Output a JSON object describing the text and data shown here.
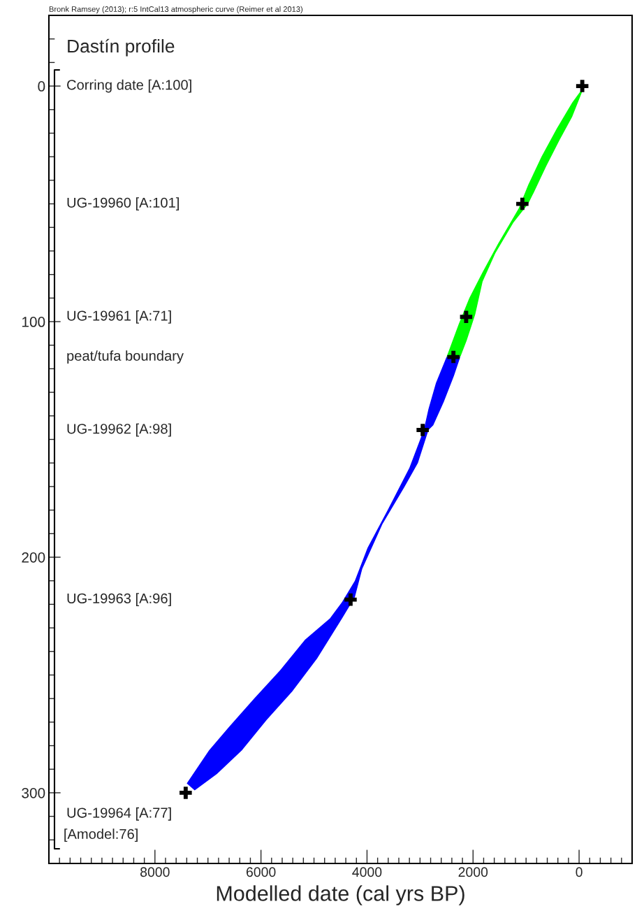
{
  "chart_data": {
    "type": "area",
    "title": "Dastín profile",
    "xlabel": "Modelled date (cal yrs BP)",
    "xlim": [
      10000,
      -1000
    ],
    "ylim": [
      330,
      -30
    ],
    "xticks": [
      {
        "value": 9800,
        "label": null
      },
      {
        "value": 9600,
        "label": null
      },
      {
        "value": 9400,
        "label": null
      },
      {
        "value": 9200,
        "label": null
      },
      {
        "value": 9000,
        "label": null
      },
      {
        "value": 8800,
        "label": null
      },
      {
        "value": 8600,
        "label": null
      },
      {
        "value": 8400,
        "label": null
      },
      {
        "value": 8200,
        "label": null
      },
      8000,
      {
        "value": 7800,
        "label": null
      },
      {
        "value": 7600,
        "label": null
      },
      {
        "value": 7400,
        "label": null
      },
      {
        "value": 7200,
        "label": null
      },
      {
        "value": 7000,
        "label": null
      },
      {
        "value": 6800,
        "label": null
      },
      {
        "value": 6600,
        "label": null
      },
      {
        "value": 6400,
        "label": null
      },
      {
        "value": 6200,
        "label": null
      },
      6000,
      {
        "value": 5800,
        "label": null
      },
      {
        "value": 5600,
        "label": null
      },
      {
        "value": 5400,
        "label": null
      },
      {
        "value": 5200,
        "label": null
      },
      {
        "value": 5000,
        "label": null
      },
      {
        "value": 4800,
        "label": null
      },
      {
        "value": 4600,
        "label": null
      },
      {
        "value": 4400,
        "label": null
      },
      {
        "value": 4200,
        "label": null
      },
      4000,
      {
        "value": 3800,
        "label": null
      },
      {
        "value": 3600,
        "label": null
      },
      {
        "value": 3400,
        "label": null
      },
      {
        "value": 3200,
        "label": null
      },
      {
        "value": 3000,
        "label": null
      },
      {
        "value": 2800,
        "label": null
      },
      {
        "value": 2600,
        "label": null
      },
      {
        "value": 2400,
        "label": null
      },
      {
        "value": 2200,
        "label": null
      },
      2000,
      {
        "value": 1800,
        "label": null
      },
      {
        "value": 1600,
        "label": null
      },
      {
        "value": 1400,
        "label": null
      },
      {
        "value": 1200,
        "label": null
      },
      {
        "value": 1000,
        "label": null
      },
      {
        "value": 800,
        "label": null
      },
      {
        "value": 600,
        "label": null
      },
      {
        "value": 400,
        "label": null
      },
      {
        "value": 200,
        "label": null
      },
      0,
      {
        "value": -200,
        "label": null
      },
      {
        "value": -400,
        "label": null
      },
      {
        "value": -600,
        "label": null
      },
      {
        "value": -800,
        "label": null
      }
    ],
    "yticks": [
      {
        "value": -20,
        "label": null
      },
      {
        "value": -10,
        "label": null
      },
      0,
      {
        "value": 10,
        "label": null
      },
      {
        "value": 20,
        "label": null
      },
      {
        "value": 30,
        "label": null
      },
      {
        "value": 40,
        "label": null
      },
      {
        "value": 50,
        "label": null
      },
      {
        "value": 60,
        "label": null
      },
      {
        "value": 70,
        "label": null
      },
      {
        "value": 80,
        "label": null
      },
      {
        "value": 90,
        "label": null
      },
      100,
      {
        "value": 110,
        "label": null
      },
      {
        "value": 120,
        "label": null
      },
      {
        "value": 130,
        "label": null
      },
      {
        "value": 140,
        "label": null
      },
      {
        "value": 150,
        "label": null
      },
      {
        "value": 160,
        "label": null
      },
      {
        "value": 170,
        "label": null
      },
      {
        "value": 180,
        "label": null
      },
      {
        "value": 190,
        "label": null
      },
      200,
      {
        "value": 210,
        "label": null
      },
      {
        "value": 220,
        "label": null
      },
      {
        "value": 230,
        "label": null
      },
      {
        "value": 240,
        "label": null
      },
      {
        "value": 250,
        "label": null
      },
      {
        "value": 260,
        "label": null
      },
      {
        "value": 270,
        "label": null
      },
      {
        "value": 280,
        "label": null
      },
      {
        "value": 290,
        "label": null
      },
      300,
      {
        "value": 310,
        "label": null
      },
      {
        "value": 320,
        "label": null
      }
    ],
    "grid": false,
    "legend": false,
    "series": [
      {
        "color": "#00ff00",
        "x": [
          -65,
          130,
          370,
          620,
          850,
          960,
          1240,
          1580,
          1820,
          1960,
          2120,
          2240,
          2500,
          2270,
          2070,
          1820,
          1530,
          1140,
          960,
          710,
          420,
          130,
          -65
        ],
        "values": [
          2,
          13,
          23,
          34,
          45,
          50,
          58,
          71,
          83,
          97,
          108,
          115,
          115,
          101,
          90,
          79,
          67,
          52,
          42,
          30,
          18,
          7,
          1
        ]
      },
      {
        "color": "#0000ff",
        "x": [
          2240,
          2360,
          2550,
          2750,
          2840,
          3040,
          3290,
          3710,
          4090,
          4230,
          4470,
          4940,
          5410,
          5890,
          6360,
          6830,
          7250,
          7400,
          6980,
          6600,
          6130,
          5640,
          5170,
          4700,
          4470,
          4230,
          3990,
          3610,
          3200,
          2930,
          2840,
          2700,
          2500
        ],
        "values": [
          115,
          123,
          134,
          144,
          146,
          160,
          170,
          186,
          205,
          217,
          226,
          243,
          257,
          269,
          282,
          292,
          299,
          296,
          282,
          272,
          260,
          248,
          235,
          226,
          219,
          210,
          196,
          180,
          162,
          146,
          137,
          126,
          115
        ]
      },
      {
        "type": "scatter",
        "color": "#000000",
        "marker": "cross",
        "x": [
          -60,
          1070,
          2130,
          2370,
          2950,
          4310,
          7420
        ],
        "values": [
          0,
          50,
          98,
          115,
          146,
          218,
          300
        ]
      }
    ],
    "annotations": [
      "Bronk Ramsey (2013); r:5 IntCal13 atmospheric curve (Reimer et al 2013)",
      "Corring date [A:100]",
      "UG-19960 [A:101]",
      "UG-19961 [A:71]",
      "peat/tufa boundary",
      "UG-19962 [A:98]",
      "UG-19963 [A:96]",
      "UG-19964 [A:77]",
      "[Amodel:76]"
    ]
  }
}
